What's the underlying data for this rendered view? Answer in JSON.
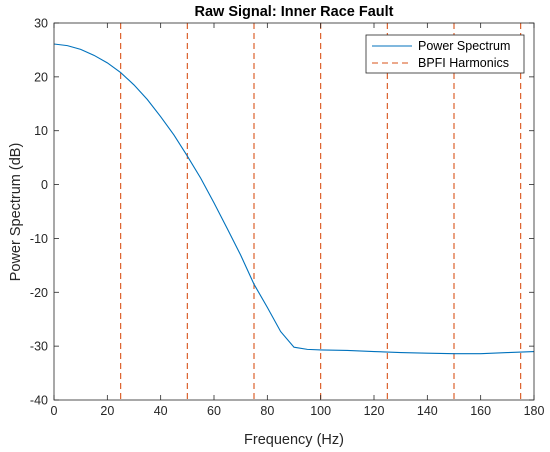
{
  "chart_data": {
    "type": "line",
    "title": "Raw Signal: Inner Race Fault",
    "xlabel": "Frequency (Hz)",
    "ylabel": "Power Spectrum (dB)",
    "xlim": [
      0,
      180
    ],
    "ylim": [
      -40,
      30
    ],
    "xticks": [
      0,
      20,
      40,
      60,
      80,
      100,
      120,
      140,
      160,
      180
    ],
    "yticks": [
      -40,
      -30,
      -20,
      -10,
      0,
      10,
      20,
      30
    ],
    "grid": false,
    "legend_position": "top-right",
    "series": [
      {
        "name": "Power Spectrum",
        "color": "#0072BD",
        "style": "solid",
        "x": [
          0,
          5,
          10,
          15,
          20,
          25,
          30,
          35,
          40,
          45,
          50,
          55,
          60,
          65,
          70,
          75,
          80,
          85,
          90,
          95,
          100,
          110,
          120,
          130,
          140,
          150,
          160,
          170,
          180
        ],
        "y": [
          26.1,
          25.8,
          25.1,
          24,
          22.6,
          20.8,
          18.5,
          15.8,
          12.6,
          9.2,
          5.3,
          1.2,
          -3.4,
          -8.2,
          -13.1,
          -18.5,
          -22.8,
          -27.3,
          -30.2,
          -30.6,
          -30.7,
          -30.8,
          -31,
          -31.2,
          -31.3,
          -31.4,
          -31.4,
          -31.2,
          -31
        ]
      },
      {
        "name": "BPFI Harmonics",
        "color": "#D95319",
        "style": "dashed",
        "x": [
          25,
          50,
          75,
          100,
          125,
          150,
          175
        ]
      }
    ]
  }
}
